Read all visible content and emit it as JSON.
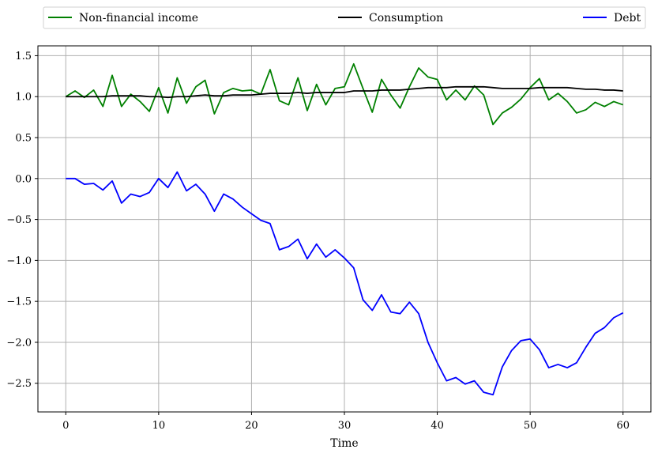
{
  "chart_data": {
    "type": "line",
    "xlabel": "Time",
    "ylabel": "",
    "xlim": [
      -3,
      63
    ],
    "ylim": [
      -2.85,
      1.62
    ],
    "xticks": [
      0,
      10,
      20,
      30,
      40,
      50,
      60
    ],
    "yticks": [
      -2.5,
      -2.0,
      -1.5,
      -1.0,
      -0.5,
      0.0,
      0.5,
      1.0,
      1.5
    ],
    "ytick_labels": [
      "−2.5",
      "−2.0",
      "−1.5",
      "−1.0",
      "−0.5",
      "0.0",
      "0.5",
      "1.0",
      "1.5"
    ],
    "grid": true,
    "legend_position": "top, outside plot",
    "x": [
      0,
      1,
      2,
      3,
      4,
      5,
      6,
      7,
      8,
      9,
      10,
      11,
      12,
      13,
      14,
      15,
      16,
      17,
      18,
      19,
      20,
      21,
      22,
      23,
      24,
      25,
      26,
      27,
      28,
      29,
      30,
      31,
      32,
      33,
      34,
      35,
      36,
      37,
      38,
      39,
      40,
      41,
      42,
      43,
      44,
      45,
      46,
      47,
      48,
      49,
      50,
      51,
      52,
      53,
      54,
      55,
      56,
      57,
      58,
      59,
      60
    ],
    "series": [
      {
        "name": "Non-financial income",
        "color": "#008000",
        "values": [
          1.0,
          1.07,
          0.99,
          1.08,
          0.88,
          1.26,
          0.88,
          1.03,
          0.94,
          0.82,
          1.11,
          0.8,
          1.23,
          0.92,
          1.12,
          1.2,
          0.79,
          1.05,
          1.1,
          1.07,
          1.08,
          1.03,
          1.33,
          0.95,
          0.9,
          1.23,
          0.83,
          1.15,
          0.9,
          1.1,
          1.12,
          1.4,
          1.1,
          0.81,
          1.21,
          1.02,
          0.86,
          1.12,
          1.35,
          1.24,
          1.21,
          0.96,
          1.08,
          0.96,
          1.13,
          1.02,
          0.66,
          0.8,
          0.87,
          0.97,
          1.11,
          1.22,
          0.96,
          1.04,
          0.94,
          0.8,
          0.84,
          0.93,
          0.88,
          0.94,
          0.9
        ]
      },
      {
        "name": "Consumption",
        "color": "#000000",
        "values": [
          1.0,
          1.0,
          1.0,
          1.0,
          1.0,
          1.01,
          1.01,
          1.01,
          1.01,
          1.0,
          1.0,
          0.99,
          1.0,
          1.0,
          1.01,
          1.02,
          1.01,
          1.01,
          1.02,
          1.02,
          1.02,
          1.03,
          1.04,
          1.04,
          1.04,
          1.05,
          1.04,
          1.05,
          1.05,
          1.05,
          1.05,
          1.07,
          1.07,
          1.07,
          1.08,
          1.08,
          1.08,
          1.09,
          1.1,
          1.11,
          1.11,
          1.11,
          1.12,
          1.12,
          1.12,
          1.12,
          1.11,
          1.1,
          1.1,
          1.1,
          1.1,
          1.11,
          1.11,
          1.11,
          1.11,
          1.1,
          1.09,
          1.09,
          1.08,
          1.08,
          1.07
        ]
      },
      {
        "name": "Debt",
        "color": "#0000ff",
        "values": [
          0.0,
          0.0,
          -0.07,
          -0.06,
          -0.14,
          -0.03,
          -0.3,
          -0.19,
          -0.22,
          -0.17,
          0.0,
          -0.11,
          0.08,
          -0.15,
          -0.07,
          -0.19,
          -0.4,
          -0.19,
          -0.25,
          -0.35,
          -0.43,
          -0.51,
          -0.55,
          -0.87,
          -0.83,
          -0.74,
          -0.98,
          -0.8,
          -0.96,
          -0.87,
          -0.97,
          -1.09,
          -1.48,
          -1.61,
          -1.42,
          -1.63,
          -1.65,
          -1.51,
          -1.65,
          -2.0,
          -2.25,
          -2.47,
          -2.43,
          -2.51,
          -2.47,
          -2.61,
          -2.64,
          -2.3,
          -2.1,
          -1.98,
          -1.96,
          -2.09,
          -2.31,
          -2.27,
          -2.31,
          -2.25,
          -2.06,
          -1.89,
          -1.82,
          -1.7,
          -1.64
        ]
      }
    ]
  }
}
